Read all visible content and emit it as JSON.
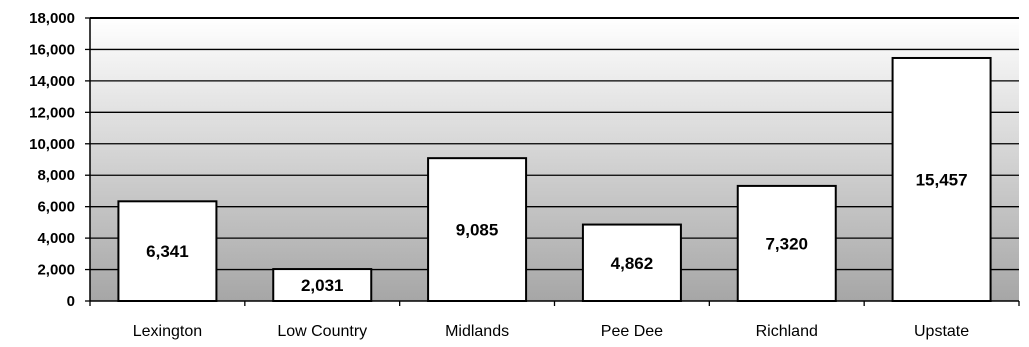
{
  "chart_data": {
    "type": "bar",
    "title": "",
    "xlabel": "",
    "ylabel": "",
    "categories": [
      "Lexington",
      "Low Country",
      "Midlands",
      "Pee Dee",
      "Richland",
      "Upstate"
    ],
    "values": [
      6341,
      2031,
      9085,
      4862,
      7320,
      15457
    ],
    "data_labels": [
      "6,341",
      "2,031",
      "9,085",
      "4,862",
      "7,320",
      "15,457"
    ],
    "ylim": [
      0,
      18000
    ],
    "y_ticks": [
      0,
      2000,
      4000,
      6000,
      8000,
      10000,
      12000,
      14000,
      16000,
      18000
    ],
    "y_tick_labels": [
      "0",
      "2,000",
      "4,000",
      "6,000",
      "8,000",
      "10,000",
      "12,000",
      "14,000",
      "16,000",
      "18,000"
    ],
    "grid": true,
    "legend": "none",
    "colors": {
      "bar_fill": "#ffffff",
      "bar_stroke": "#000000",
      "plot_top": "#ffffff",
      "plot_bottom": "#a6a6a6",
      "gridline": "#000000"
    }
  }
}
